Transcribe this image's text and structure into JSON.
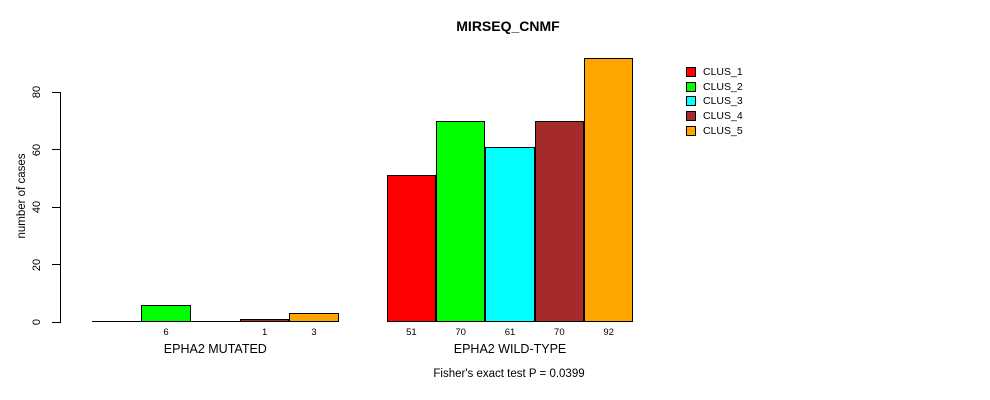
{
  "title": "MIRSEQ_CNMF",
  "caption": "Fisher's exact test P = 0.0399",
  "chart_data": {
    "type": "bar",
    "title": "MIRSEQ_CNMF",
    "xlabel": "",
    "ylabel": "number of cases",
    "ylim": [
      0,
      92
    ],
    "yticks": [
      0,
      20,
      40,
      60,
      80
    ],
    "grid": false,
    "legend_position": "right",
    "categories": [
      "EPHA2 MUTATED",
      "EPHA2 WILD-TYPE"
    ],
    "series": [
      {
        "name": "CLUS_1",
        "color": "#FF0000",
        "values": [
          0,
          51
        ]
      },
      {
        "name": "CLUS_2",
        "color": "#00FF00",
        "values": [
          6,
          70
        ]
      },
      {
        "name": "CLUS_3",
        "color": "#00FFFF",
        "values": [
          0,
          61
        ]
      },
      {
        "name": "CLUS_4",
        "color": "#A52A2A",
        "values": [
          1,
          70
        ]
      },
      {
        "name": "CLUS_5",
        "color": "#FFA500",
        "values": [
          3,
          92
        ]
      }
    ],
    "bar_value_labels": {
      "EPHA2 MUTATED": [
        "",
        "6",
        "",
        "1",
        "3"
      ],
      "EPHA2 WILD-TYPE": [
        "51",
        "70",
        "61",
        "70",
        "92"
      ]
    },
    "note": "Fisher's exact test P = 0.0399"
  }
}
